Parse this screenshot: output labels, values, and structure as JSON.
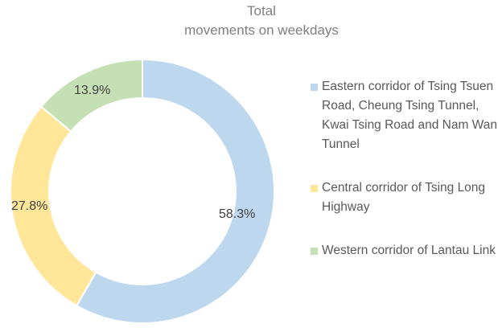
{
  "chart_data": {
    "type": "pie",
    "subtype": "donut",
    "title": "Total movements on weekdays",
    "title_lines": [
      "Total",
      "movements on weekdays"
    ],
    "categories": [
      "Eastern corridor of Tsing Tsuen Road, Cheung Tsing Tunnel, Kwai Tsing Road and Nam Wan Tunnel",
      "Central corridor of Tsing Long Highway",
      "Western corridor of Lantau Link"
    ],
    "values": [
      58.3,
      27.8,
      13.9
    ],
    "data_labels": [
      "58.3%",
      "27.8%",
      "13.9%"
    ],
    "colors": [
      "#bdd7ee",
      "#ffe699",
      "#c5e0b4"
    ],
    "legend_position": "right",
    "unit": "%"
  },
  "legend": [
    {
      "label": "Eastern corridor of Tsing Tsuen Road, Cheung Tsing Tunnel, Kwai Tsing Road and Nam Wan Tunnel",
      "color": "#bdd7ee"
    },
    {
      "label": "Central corridor of Tsing Long Highway",
      "color": "#ffe699"
    },
    {
      "label": "Western corridor of Lantau Link",
      "color": "#c5e0b4"
    }
  ]
}
